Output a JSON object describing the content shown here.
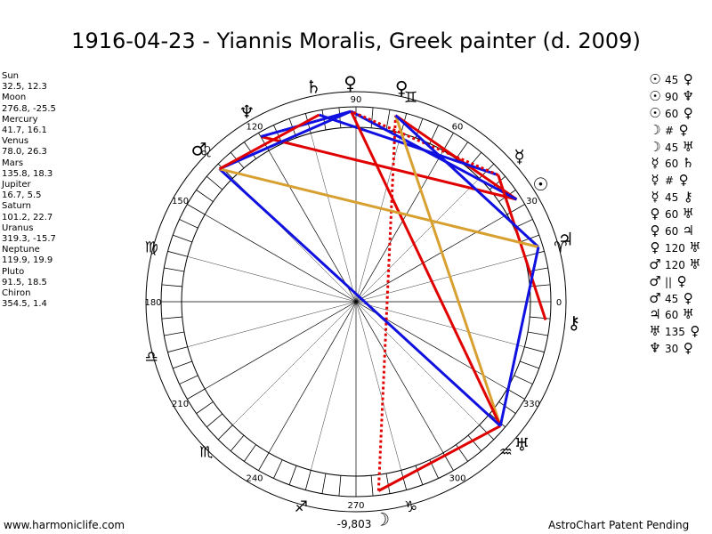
{
  "title": "1916-04-23 - Yiannis Moralis, Greek painter (d. 2009)",
  "planets": [
    {
      "name": "Sun",
      "pos": "32.5, 12.3",
      "glyph": "☉",
      "lon": 32.5
    },
    {
      "name": "Moon",
      "pos": "276.8, -25.5",
      "glyph": "☽",
      "lon": 276.8
    },
    {
      "name": "Mercury",
      "pos": "41.7, 16.1",
      "glyph": "☿",
      "lon": 41.7
    },
    {
      "name": "Venus",
      "pos": "78.0, 26.3",
      "glyph": "♀",
      "lon": 78.0
    },
    {
      "name": "Mars",
      "pos": "135.8, 18.3",
      "glyph": "♂",
      "lon": 135.8
    },
    {
      "name": "Jupiter",
      "pos": "16.7, 5.5",
      "glyph": "♃",
      "lon": 16.7
    },
    {
      "name": "Saturn",
      "pos": "101.2, 22.7",
      "glyph": "♄",
      "lon": 101.2
    },
    {
      "name": "Uranus",
      "pos": "319.3, -15.7",
      "glyph": "♅",
      "lon": 319.3
    },
    {
      "name": "Neptune",
      "pos": "119.9, 19.9",
      "glyph": "♆",
      "lon": 119.9
    },
    {
      "name": "Pluto",
      "pos": "91.5, 18.5",
      "glyph": "♀",
      "lon": 91.5
    },
    {
      "name": "Chiron",
      "pos": "354.5, 1.4",
      "glyph": "⚷",
      "lon": 354.5
    }
  ],
  "aspects": [
    {
      "a": "☉",
      "angle": "45",
      "b": "♀"
    },
    {
      "a": "☉",
      "angle": "90",
      "b": "♆"
    },
    {
      "a": "☉",
      "angle": "60",
      "b": "♀"
    },
    {
      "a": "☽",
      "angle": "#",
      "b": "♀"
    },
    {
      "a": "☽",
      "angle": "45",
      "b": "♅"
    },
    {
      "a": "☿",
      "angle": "60",
      "b": "♄"
    },
    {
      "a": "☿",
      "angle": "#",
      "b": "♀"
    },
    {
      "a": "☿",
      "angle": "45",
      "b": "⚷"
    },
    {
      "a": "♀",
      "angle": "60",
      "b": "♅"
    },
    {
      "a": "♀",
      "angle": "60",
      "b": "♃"
    },
    {
      "a": "♀",
      "angle": "120",
      "b": "♅"
    },
    {
      "a": "♂",
      "angle": "120",
      "b": "♅"
    },
    {
      "a": "♂",
      "angle": "||",
      "b": "♀"
    },
    {
      "a": "♂",
      "angle": "45",
      "b": "♀"
    },
    {
      "a": "♃",
      "angle": "60",
      "b": "♅"
    },
    {
      "a": "♅",
      "angle": "135",
      "b": "♀"
    },
    {
      "a": "♆",
      "angle": "30",
      "b": "♀"
    }
  ],
  "wheel": {
    "degree_labels": [
      "0",
      "30",
      "60",
      "90",
      "120",
      "150",
      "180",
      "210",
      "240",
      "270",
      "300",
      "330"
    ],
    "bottom_value": "-9,803",
    "zodiac_signs": [
      "♈",
      "♉",
      "♊",
      "♋",
      "♌",
      "♍",
      "♎",
      "♏",
      "♐",
      "♑",
      "♒",
      "♓"
    ],
    "colors": {
      "square": "#e00000",
      "trine": "#0000e0",
      "sextile": "#0000e0",
      "semisquare": "#e00000",
      "other": "#d4a020",
      "parallel": "#cc0000"
    }
  },
  "aspect_lines": [
    {
      "from": 78.0,
      "to": 32.5,
      "type": "red"
    },
    {
      "from": 119.9,
      "to": 32.5,
      "type": "red"
    },
    {
      "from": 91.5,
      "to": 32.5,
      "type": "blue"
    },
    {
      "from": 276.8,
      "to": 78.0,
      "type": "red-dotted"
    },
    {
      "from": 276.8,
      "to": 319.3,
      "type": "red"
    },
    {
      "from": 41.7,
      "to": 101.2,
      "type": "blue"
    },
    {
      "from": 41.7,
      "to": 91.5,
      "type": "red-dotted"
    },
    {
      "from": 41.7,
      "to": 354.5,
      "type": "red"
    },
    {
      "from": 78.0,
      "to": 319.3,
      "type": "gold"
    },
    {
      "from": 78.0,
      "to": 16.7,
      "type": "blue"
    },
    {
      "from": 91.5,
      "to": 319.3,
      "type": "red"
    },
    {
      "from": 135.8,
      "to": 319.3,
      "type": "blue"
    },
    {
      "from": 135.8,
      "to": 91.5,
      "type": "blue"
    },
    {
      "from": 135.8,
      "to": 16.7,
      "type": "gold"
    },
    {
      "from": 16.7,
      "to": 319.3,
      "type": "blue"
    },
    {
      "from": 119.9,
      "to": 91.5,
      "type": "blue"
    },
    {
      "from": 101.2,
      "to": 135.8,
      "type": "red"
    }
  ],
  "footer": {
    "left": "www.harmoniclife.com",
    "right": "AstroChart Patent Pending"
  }
}
